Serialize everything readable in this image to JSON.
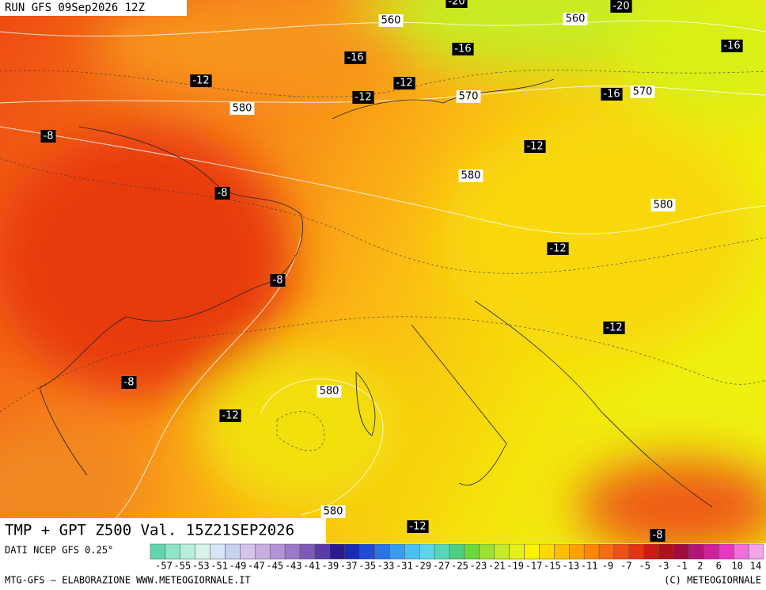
{
  "header": {
    "run": "RUN GFS 09Sep2026 12Z"
  },
  "map": {
    "contour_labels": [
      "-20",
      "-20",
      "560",
      "560",
      "-16",
      "-16",
      "-16",
      "-16",
      "-12",
      "-12",
      "-12",
      "-12",
      "-12",
      "-12",
      "-12",
      "-12",
      "570",
      "570",
      "580",
      "580",
      "580",
      "580",
      "580",
      "-8",
      "-8",
      "-8",
      "-8",
      "-8"
    ]
  },
  "title": "TMP + GPT Z500 Val. 15Z21SEP2026",
  "legend": {
    "source": "DATI NCEP GFS 0.25°",
    "labels": [
      "-57",
      "-55",
      "-53",
      "-51",
      "-49",
      "-47",
      "-45",
      "-43",
      "-41",
      "-39",
      "-37",
      "-35",
      "-33",
      "-31",
      "-29",
      "-27",
      "-25",
      "-23",
      "-21",
      "-19",
      "-17",
      "-15",
      "-13",
      "-11",
      "-9",
      "-7",
      "-5",
      "-3",
      "-1",
      "2",
      "6",
      "10",
      "14"
    ]
  },
  "footer": {
    "left": "MTG-GFS – ELABORAZIONE WWW.METEOGIORNALE.IT",
    "right": "(C) METEOGIORNALE"
  }
}
